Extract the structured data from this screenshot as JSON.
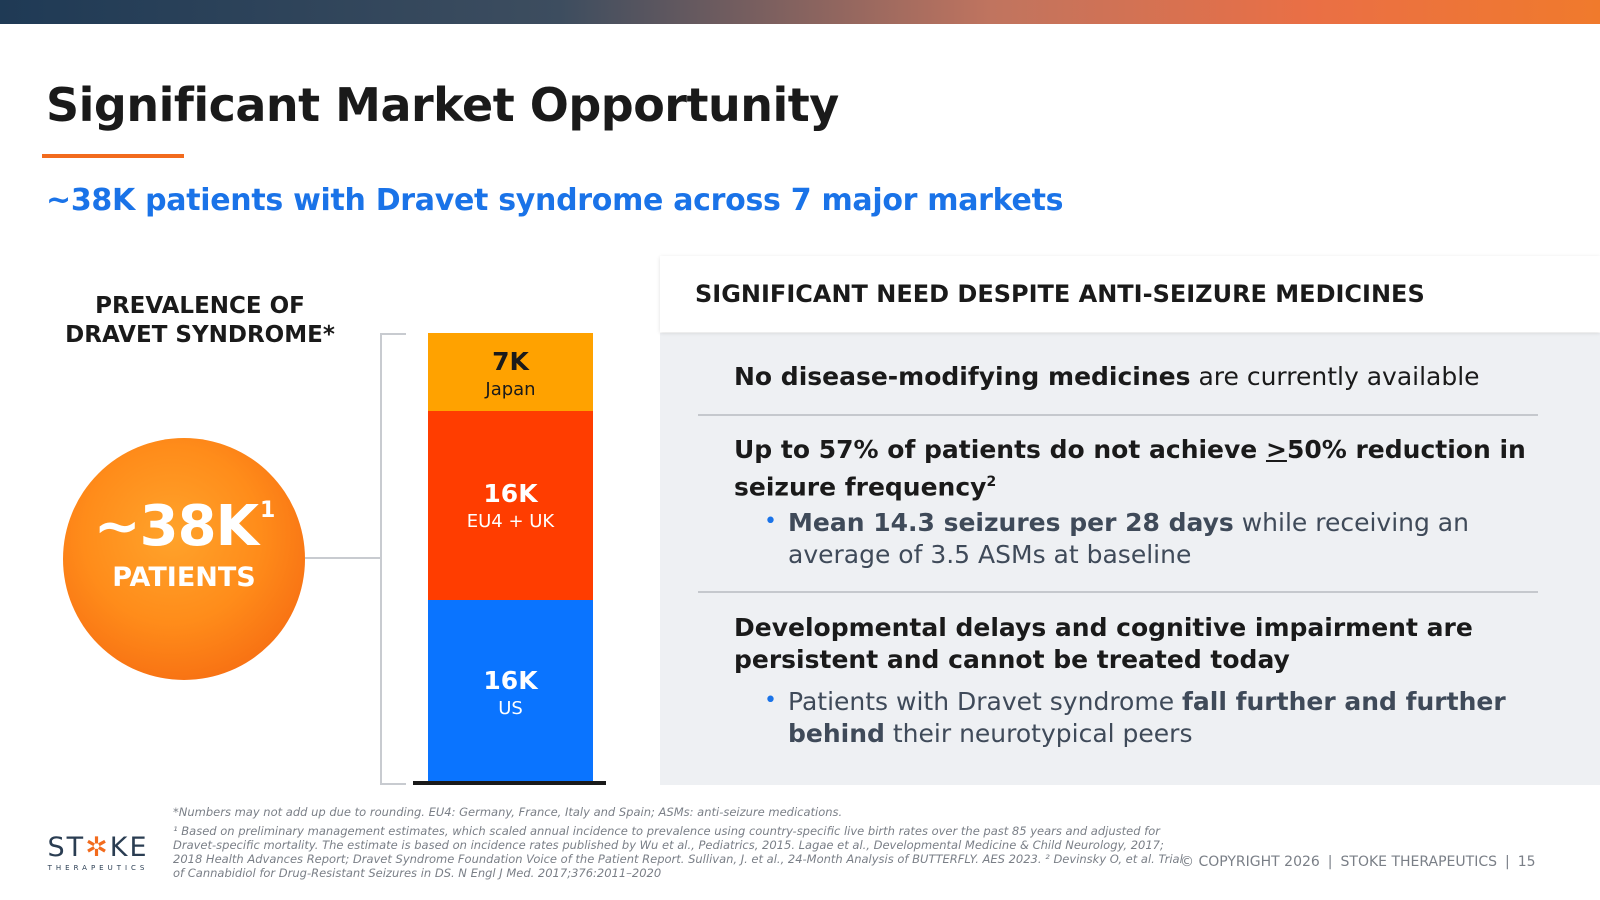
{
  "header": {
    "title": "Significant Market Opportunity",
    "subtitle": "~38K patients with Dravet syndrome across 7 major markets"
  },
  "prevalence": {
    "heading_line1": "PREVALENCE OF",
    "heading_line2": "DRAVET SYNDROME*",
    "total": "~38K",
    "total_footnote": "1",
    "total_label": "PATIENTS"
  },
  "chart_data": {
    "type": "bar",
    "stacked": true,
    "categories": [
      "Japan",
      "EU4 + UK",
      "US"
    ],
    "values": [
      7,
      16,
      16
    ],
    "value_labels": [
      "7K",
      "16K",
      "16K"
    ],
    "unit": "thousand patients",
    "colors": [
      "#ffa200",
      "#ff3d00",
      "#0a74ff"
    ]
  },
  "need": {
    "title": "SIGNIFICANT NEED DESPITE ANTI-SEIZURE MEDICINES",
    "point1_bold": "No disease-modifying medicines",
    "point1_rest": " are currently available",
    "point2_a": "Up to 57% of patients do not achieve ",
    "point2_ge": ">",
    "point2_b": "50% reduction in seizure frequency",
    "point2_sup": "2",
    "point2_sub_bold": "Mean 14.3 seizures per 28 days",
    "point2_sub_rest": " while receiving an average of 3.5 ASMs at baseline",
    "point3": "Developmental delays and cognitive impairment are persistent and cannot be treated today",
    "point3_sub_a": "Patients with Dravet syndrome ",
    "point3_sub_bold": "fall further and further behind",
    "point3_sub_b": " their neurotypical peers"
  },
  "footnotes": {
    "note1": "*Numbers may not add up due to rounding. EU4: Germany, France, Italy and Spain; ASMs: anti-seizure medications.",
    "note2": "¹ Based on preliminary management estimates, which scaled annual incidence to prevalence using country-specific live birth rates over the past 85 years and adjusted for Dravet-specific mortality. The estimate is based on incidence rates published by Wu et al., Pediatrics, 2015. Lagae et al., Developmental Medicine & Child Neurology, 2017; 2018 Health Advances Report; Dravet Syndrome Foundation Voice of the Patient Report. Sullivan, J. et al., 24-Month Analysis of BUTTERFLY. AES 2023. ² Devinsky O, et al. Trial of Cannabidiol for Drug-Resistant Seizures in DS. N Engl J Med. 2017;376:2011–2020"
  },
  "footer": {
    "logo_left": "ST",
    "logo_mark": "✲",
    "logo_right": "KE",
    "logo_sub": "THERAPEUTICS",
    "copyright": "© COPYRIGHT 2026",
    "company": "STOKE THERAPEUTICS",
    "page_number": "15"
  },
  "colors": {
    "accent_blue": "#1a73e8",
    "accent_orange": "#f26b1d"
  }
}
